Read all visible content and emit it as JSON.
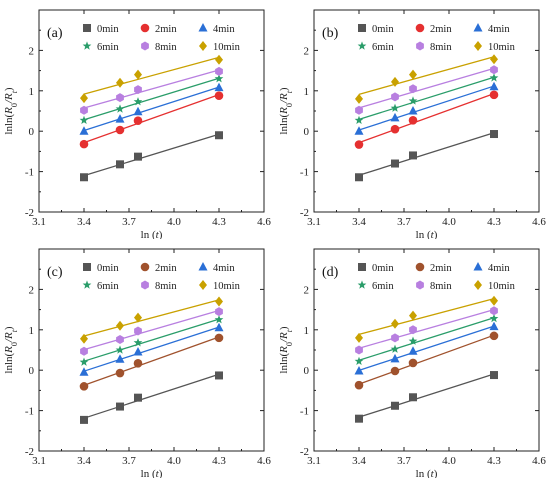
{
  "figure": {
    "xlabel_prefix": "ln (",
    "xlabel_var": "t",
    "xlabel_suffix": ")",
    "ylabel_prefix": "lnln(",
    "ylabel_r0": "R",
    "ylabel_r0_sub": "0",
    "ylabel_slash": "/",
    "ylabel_rt": "R",
    "ylabel_rt_sub": "t",
    "ylabel_suffix": ")"
  },
  "chart_data": [
    {
      "panel": "(a)",
      "type": "scatter",
      "xlim": [
        3.1,
        4.6
      ],
      "ylim": [
        -2,
        3
      ],
      "xticks": [
        "3.1",
        "3.4",
        "3.7",
        "4.0",
        "4.3",
        "4.6"
      ],
      "yticks": [
        "-2",
        "-1",
        "0",
        "1",
        "2"
      ],
      "x": [
        3.4,
        3.64,
        3.76,
        4.3
      ],
      "fit": "linear",
      "series": [
        {
          "name": "0min",
          "marker": "square",
          "color": "#555555",
          "values": [
            -1.14,
            -0.82,
            -0.63,
            -0.1
          ]
        },
        {
          "name": "2min",
          "marker": "circle",
          "color": "#e53030",
          "values": [
            -0.32,
            0.03,
            0.26,
            0.88
          ]
        },
        {
          "name": "4min",
          "marker": "triangle",
          "color": "#2a6fd6",
          "values": [
            0.0,
            0.3,
            0.48,
            1.08
          ]
        },
        {
          "name": "6min",
          "marker": "star",
          "color": "#2a9d6a",
          "values": [
            0.27,
            0.55,
            0.73,
            1.3
          ]
        },
        {
          "name": "8min",
          "marker": "hexagon",
          "color": "#b87fe0",
          "values": [
            0.52,
            0.83,
            1.03,
            1.48
          ]
        },
        {
          "name": "10min",
          "marker": "diamond",
          "color": "#c9a100",
          "values": [
            0.82,
            1.2,
            1.4,
            1.77
          ]
        }
      ]
    },
    {
      "panel": "(b)",
      "type": "scatter",
      "xlim": [
        3.1,
        4.6
      ],
      "ylim": [
        -2,
        3
      ],
      "xticks": [
        "3.1",
        "3.4",
        "3.7",
        "4.0",
        "4.3",
        "4.6"
      ],
      "yticks": [
        "-2",
        "-1",
        "0",
        "1",
        "2"
      ],
      "x": [
        3.4,
        3.64,
        3.76,
        4.3
      ],
      "fit": "linear",
      "series": [
        {
          "name": "0min",
          "marker": "square",
          "color": "#555555",
          "values": [
            -1.14,
            -0.8,
            -0.6,
            -0.07
          ]
        },
        {
          "name": "2min",
          "marker": "circle",
          "color": "#e53030",
          "values": [
            -0.33,
            0.05,
            0.27,
            0.9
          ]
        },
        {
          "name": "4min",
          "marker": "triangle",
          "color": "#2a6fd6",
          "values": [
            0.0,
            0.33,
            0.5,
            1.1
          ]
        },
        {
          "name": "6min",
          "marker": "star",
          "color": "#2a9d6a",
          "values": [
            0.27,
            0.57,
            0.75,
            1.32
          ]
        },
        {
          "name": "8min",
          "marker": "hexagon",
          "color": "#b87fe0",
          "values": [
            0.52,
            0.85,
            1.05,
            1.52
          ]
        },
        {
          "name": "10min",
          "marker": "diamond",
          "color": "#c9a100",
          "values": [
            0.8,
            1.22,
            1.4,
            1.78
          ]
        }
      ]
    },
    {
      "panel": "(c)",
      "type": "scatter",
      "xlim": [
        3.1,
        4.6
      ],
      "ylim": [
        -2,
        3
      ],
      "xticks": [
        "3.1",
        "3.4",
        "3.7",
        "4.0",
        "4.3",
        "4.6"
      ],
      "yticks": [
        "-2",
        "-1",
        "0",
        "1",
        "2"
      ],
      "x": [
        3.4,
        3.64,
        3.76,
        4.3
      ],
      "fit": "linear",
      "series": [
        {
          "name": "0min",
          "marker": "square",
          "color": "#555555",
          "values": [
            -1.23,
            -0.9,
            -0.68,
            -0.13
          ]
        },
        {
          "name": "2min",
          "marker": "circle",
          "color": "#a0522d",
          "values": [
            -0.4,
            -0.07,
            0.17,
            0.8
          ]
        },
        {
          "name": "4min",
          "marker": "triangle",
          "color": "#2a6fd6",
          "values": [
            -0.05,
            0.27,
            0.45,
            1.05
          ]
        },
        {
          "name": "6min",
          "marker": "star",
          "color": "#2a9d6a",
          "values": [
            0.2,
            0.5,
            0.68,
            1.25
          ]
        },
        {
          "name": "8min",
          "marker": "hexagon",
          "color": "#b87fe0",
          "values": [
            0.47,
            0.76,
            0.97,
            1.45
          ]
        },
        {
          "name": "10min",
          "marker": "diamond",
          "color": "#c9a100",
          "values": [
            0.78,
            1.1,
            1.3,
            1.7
          ]
        }
      ]
    },
    {
      "panel": "(d)",
      "type": "scatter",
      "xlim": [
        3.1,
        4.6
      ],
      "ylim": [
        -2,
        3
      ],
      "xticks": [
        "3.1",
        "3.4",
        "3.7",
        "4.0",
        "4.3",
        "4.6"
      ],
      "yticks": [
        "-2",
        "-1",
        "0",
        "1",
        "2"
      ],
      "x": [
        3.4,
        3.64,
        3.76,
        4.3
      ],
      "fit": "linear",
      "series": [
        {
          "name": "0min",
          "marker": "square",
          "color": "#555555",
          "values": [
            -1.2,
            -0.88,
            -0.67,
            -0.12
          ]
        },
        {
          "name": "2min",
          "marker": "circle",
          "color": "#a0522d",
          "values": [
            -0.37,
            -0.02,
            0.18,
            0.85
          ]
        },
        {
          "name": "4min",
          "marker": "triangle",
          "color": "#2a6fd6",
          "values": [
            -0.02,
            0.28,
            0.47,
            1.08
          ]
        },
        {
          "name": "6min",
          "marker": "star",
          "color": "#2a9d6a",
          "values": [
            0.22,
            0.52,
            0.72,
            1.28
          ]
        },
        {
          "name": "8min",
          "marker": "hexagon",
          "color": "#b87fe0",
          "values": [
            0.5,
            0.8,
            1.0,
            1.47
          ]
        },
        {
          "name": "10min",
          "marker": "diamond",
          "color": "#c9a100",
          "values": [
            0.8,
            1.15,
            1.35,
            1.72
          ]
        }
      ]
    }
  ]
}
